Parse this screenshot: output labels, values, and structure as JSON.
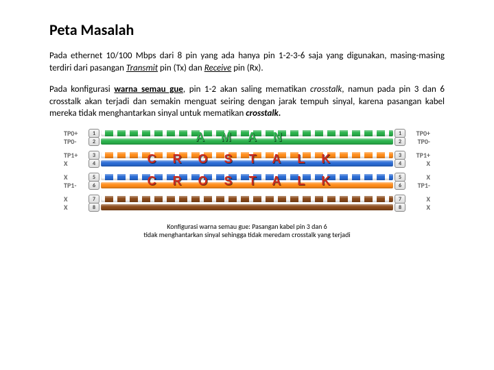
{
  "title": "Peta Masalah",
  "para1_before_tx": "Pada ethernet 10/100 Mbps dari 8 pin yang ada hanya pin 1-2-3-6 saja yang digunakan, masing-masing terdiri dari pasangan ",
  "para1_tx_word": "Transmit",
  "para1_between": " pin (Tx) dan ",
  "para1_rx_word": "Receive",
  "para1_after": " pin (Rx).",
  "para2_a": "Pada konfigurasi ",
  "para2_b": "warna semau gue",
  "para2_c": ", pin 1-2 akan saling mematikan ",
  "para2_d": "crosstalk",
  "para2_e": ", namun pada pin 3 dan 6 crosstalk akan terjadi dan semakin menguat seiring dengan jarak tempuh sinyal, karena pasangan kabel mereka tidak menghantarkan sinyal untuk mematikan ",
  "para2_f": "crosstalk",
  "para2_g": ".",
  "caption_line1": "Konfigurasi warna semau gue: Pasangan kabel pin 3 dan 6",
  "caption_line2": "tidak menghantarkan sinyal sehingga tidak meredam crosstalk yang terjadi",
  "diagram": {
    "groups": [
      {
        "overlay": "AMAN",
        "overlay_color": "#2bb24c",
        "rows": [
          {
            "left": "TP0+",
            "right": "TP0+",
            "pin": "1",
            "wire_color": "#2bb24c",
            "style": "striped"
          },
          {
            "left": "TP0-",
            "right": "TP0-",
            "pin": "2",
            "wire_color": "#2bb24c",
            "style": "solid"
          }
        ]
      },
      {
        "overlay": "CROSTALK",
        "overlay_color": "#cc2a1f",
        "rows": [
          {
            "left": "TP1+",
            "right": "TP1+",
            "pin": "3",
            "wire_color": "#ff8c1a",
            "style": "striped"
          },
          {
            "left": "X",
            "right": "X",
            "pin": "4",
            "wire_color": "#2a6bd4",
            "style": "solid"
          }
        ]
      },
      {
        "overlay": "CROSTALK",
        "overlay_color": "#cc2a1f",
        "rows": [
          {
            "left": "X",
            "right": "X",
            "pin": "5",
            "wire_color": "#2a6bd4",
            "style": "striped"
          },
          {
            "left": "TP1-",
            "right": "TP1-",
            "pin": "6",
            "wire_color": "#ff8c1a",
            "style": "solid"
          }
        ]
      },
      {
        "overlay": "",
        "overlay_color": "",
        "rows": [
          {
            "left": "X",
            "right": "X",
            "pin": "7",
            "wire_color": "#8a4a1a",
            "style": "striped"
          },
          {
            "left": "X",
            "right": "X",
            "pin": "8",
            "wire_color": "#8a4a1a",
            "style": "solid"
          }
        ]
      }
    ]
  }
}
